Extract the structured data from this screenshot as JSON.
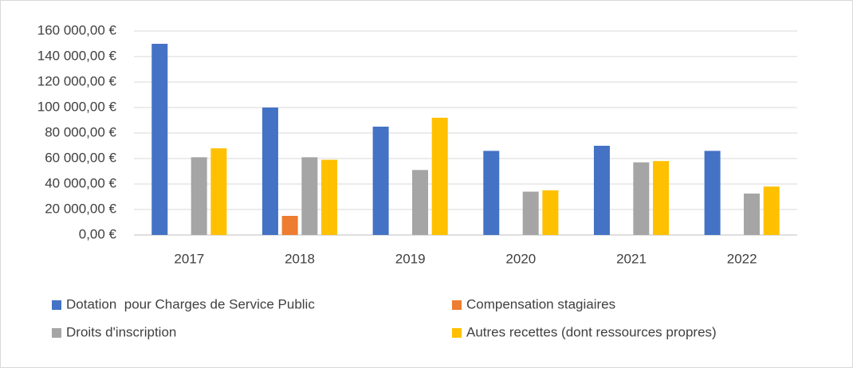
{
  "chart_data": {
    "type": "bar",
    "categories": [
      "2017",
      "2018",
      "2019",
      "2020",
      "2021",
      "2022"
    ],
    "series": [
      {
        "name": "Dotation  pour Charges de Service Public",
        "color": "#4472c4",
        "values": [
          150000,
          100000,
          85000,
          66000,
          70000,
          66000
        ]
      },
      {
        "name": "Compensation stagiaires",
        "color": "#ed7d31",
        "values": [
          null,
          15000,
          null,
          null,
          null,
          null
        ]
      },
      {
        "name": "Droits d'inscription",
        "color": "#a5a5a5",
        "values": [
          61000,
          61000,
          51000,
          34000,
          57000,
          32500
        ]
      },
      {
        "name": "Autres recettes (dont ressources propres)",
        "color": "#ffc000",
        "values": [
          68000,
          59000,
          92000,
          35000,
          58000,
          38000
        ]
      }
    ],
    "ylim": [
      0,
      160000
    ],
    "yticks": [
      {
        "value": 0,
        "label": "0,00 €"
      },
      {
        "value": 20000,
        "label": "20 000,00 €"
      },
      {
        "value": 40000,
        "label": "40 000,00 €"
      },
      {
        "value": 60000,
        "label": "60 000,00 €"
      },
      {
        "value": 80000,
        "label": "80 000,00 €"
      },
      {
        "value": 100000,
        "label": "100 000,00 €"
      },
      {
        "value": 120000,
        "label": "120 000,00 €"
      },
      {
        "value": 140000,
        "label": "140 000,00 €"
      },
      {
        "value": 160000,
        "label": "160 000,00 €"
      }
    ],
    "grid": true,
    "legend": "bottom"
  }
}
